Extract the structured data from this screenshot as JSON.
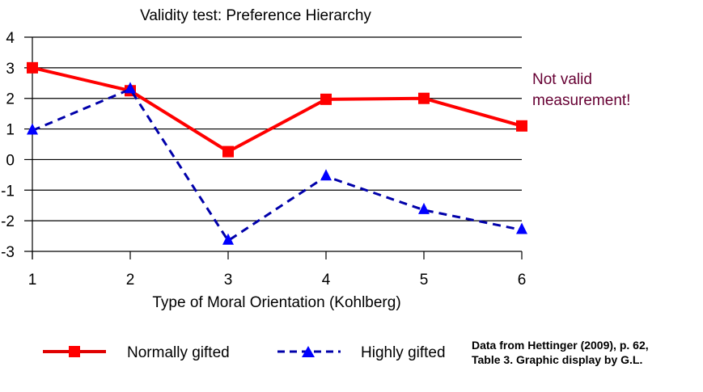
{
  "chart_data": {
    "type": "line",
    "title": "Validity test: Preference Hierarchy",
    "xlabel": "Type of Moral Orientation (Kohlberg)",
    "ylabel": "",
    "x": [
      1,
      2,
      3,
      4,
      5,
      6
    ],
    "xticks": [
      "1",
      "2",
      "3",
      "4",
      "5",
      "6"
    ],
    "yticks": [
      "4",
      "3",
      "2",
      "1",
      "0",
      "-1",
      "-2",
      "-3"
    ],
    "ylim": [
      -3,
      4
    ],
    "xlim": [
      1,
      6
    ],
    "grid": true,
    "series": [
      {
        "name": "Normally gifted",
        "values": [
          3.0,
          2.25,
          0.26,
          1.97,
          2.0,
          1.1
        ],
        "color": "#ff0000",
        "line": "solid",
        "marker": "square"
      },
      {
        "name": "Highly gifted",
        "values": [
          0.95,
          2.3,
          -2.65,
          -0.55,
          -1.65,
          -2.3
        ],
        "color": "#0000aa",
        "marker_color": "#0000ff",
        "line": "dashed",
        "marker": "triangle"
      }
    ],
    "legend_placement": "bottom",
    "annotation": {
      "lines": [
        "Not valid",
        "measurement!"
      ],
      "color": "#660033"
    },
    "source_note": [
      "Data from Hettinger (2009), p. 62,",
      "Table 3. Graphic display by G.L."
    ]
  }
}
